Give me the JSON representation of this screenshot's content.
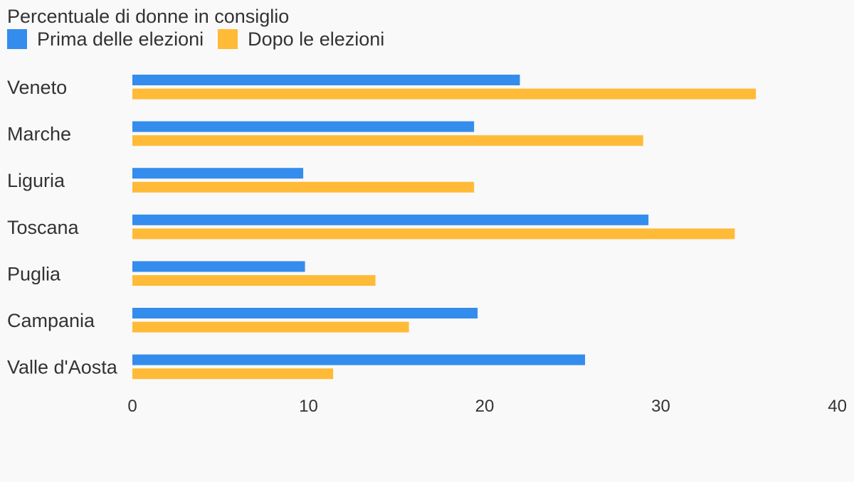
{
  "chart_data": {
    "type": "bar",
    "orientation": "horizontal",
    "title": "Percentuale di donne in consiglio",
    "categories": [
      "Veneto",
      "Marche",
      "Liguria",
      "Toscana",
      "Puglia",
      "Campania",
      "Valle d'Aosta"
    ],
    "series": [
      {
        "name": "Prima delle elezioni",
        "color": "#348ced",
        "values": [
          22.0,
          19.4,
          9.7,
          29.3,
          9.8,
          19.6,
          25.7
        ]
      },
      {
        "name": "Dopo le elezioni",
        "color": "#ffbb37",
        "values": [
          35.4,
          29.0,
          19.4,
          34.2,
          13.8,
          15.7,
          11.4
        ]
      }
    ],
    "xlim": [
      0,
      40
    ],
    "xticks": [
      "0",
      "10",
      "20",
      "30",
      "40"
    ],
    "xlabel": "",
    "ylabel": "",
    "grid": false,
    "legend_position": "top-left"
  }
}
